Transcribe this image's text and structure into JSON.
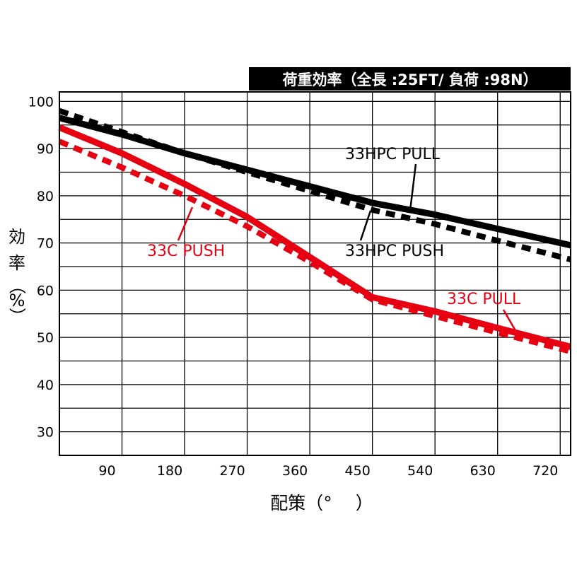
{
  "chart_data": {
    "type": "line",
    "title": "荷重効率（全長 :25FT/ 負荷 :98N）",
    "xlabel": "配策（°　 ）",
    "ylabel": [
      "効",
      "率",
      "（",
      "%",
      "）"
    ],
    "xlim": [
      0,
      735
    ],
    "ylim": [
      25,
      102
    ],
    "x_ticks": [
      90,
      180,
      270,
      360,
      450,
      540,
      630,
      720
    ],
    "x_tick_labels": [
      "90",
      "180",
      "270",
      "360",
      "450",
      "540",
      "630",
      "720"
    ],
    "y_ticks": [
      30,
      40,
      50,
      60,
      70,
      80,
      90,
      100
    ],
    "y_tick_labels": [
      "30",
      "40",
      "50",
      "60",
      "70",
      "80",
      "90",
      "100"
    ],
    "grid": true,
    "series": [
      {
        "name": "33HPC PULL",
        "color": "#000000",
        "style": "solid",
        "x": [
          0,
          90,
          180,
          270,
          360,
          450,
          540,
          630,
          735
        ],
        "y": [
          96.5,
          93,
          89,
          85.5,
          82,
          78.5,
          76,
          73,
          69.5
        ]
      },
      {
        "name": "33HPC PUSH",
        "color": "#000000",
        "style": "dashed",
        "x": [
          0,
          90,
          180,
          270,
          360,
          450,
          540,
          630,
          735
        ],
        "y": [
          98,
          93.5,
          89,
          85,
          81,
          77,
          74,
          70.5,
          66.5
        ]
      },
      {
        "name": "33C PULL",
        "color": "#e60012",
        "style": "solid",
        "x": [
          0,
          90,
          180,
          270,
          360,
          450,
          540,
          630,
          735
        ],
        "y": [
          94.5,
          89,
          82.5,
          75.5,
          67,
          58.5,
          55.5,
          52,
          48
        ]
      },
      {
        "name": "33C PUSH",
        "color": "#e60012",
        "style": "dashed",
        "x": [
          0,
          90,
          180,
          270,
          360,
          450,
          540,
          630,
          735
        ],
        "y": [
          91.5,
          86,
          80,
          73.5,
          66,
          58,
          54.5,
          51,
          47
        ]
      }
    ],
    "annotations": [
      {
        "text": "33HPC PULL",
        "color": "#000000"
      },
      {
        "text": "33HPC PUSH",
        "color": "#000000"
      },
      {
        "text": "33C PUSH",
        "color": "#e60012"
      },
      {
        "text": "33C PULL",
        "color": "#e60012"
      }
    ]
  }
}
